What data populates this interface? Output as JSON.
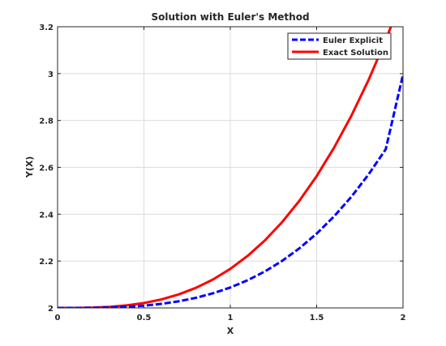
{
  "chart_data": {
    "type": "line",
    "title": "Solution with Euler's Method",
    "xlabel": "X",
    "ylabel": "Y(X)",
    "xlim": [
      0,
      2
    ],
    "ylim": [
      2,
      3.2
    ],
    "xticks": [
      0,
      0.5,
      1,
      1.5,
      2
    ],
    "xtick_labels": [
      "0",
      "0.5",
      "1",
      "1.5",
      "2"
    ],
    "yticks": [
      2,
      2.2,
      2.4,
      2.6,
      2.8,
      3,
      3.2
    ],
    "ytick_labels": [
      "2",
      "2.2",
      "2.4",
      "2.6",
      "2.8",
      "3",
      "3.2"
    ],
    "grid": true,
    "legend_position": "top-right",
    "series": [
      {
        "name": "Euler Explicit",
        "color": "#0000ff",
        "style": "dashed",
        "x": [
          0,
          0.1,
          0.2,
          0.3,
          0.4,
          0.5,
          0.6,
          0.7,
          0.8,
          0.9,
          1.0,
          1.1,
          1.2,
          1.3,
          1.4,
          1.5,
          1.6,
          1.7,
          1.8,
          1.9,
          2.0
        ],
        "y": [
          2.0,
          2.0,
          2.0004,
          2.0018,
          2.0046,
          2.0096,
          2.0172,
          2.0281,
          2.0429,
          2.0623,
          2.0871,
          2.1179,
          2.1555,
          2.2007,
          2.2543,
          2.3171,
          2.3899,
          2.4736,
          2.5691,
          2.6773,
          2.996
        ]
      },
      {
        "name": "Exact Solution",
        "color": "#ff0000",
        "style": "solid",
        "x": [
          0,
          0.1,
          0.2,
          0.3,
          0.4,
          0.5,
          0.6,
          0.7,
          0.8,
          0.9,
          1.0,
          1.1,
          1.2,
          1.3,
          1.4,
          1.5,
          1.6,
          1.7,
          1.8,
          1.9,
          2.0
        ],
        "y": [
          2.0,
          2.0001,
          2.0013,
          2.0045,
          2.0107,
          2.0208,
          2.036,
          2.0572,
          2.0853,
          2.1215,
          2.1667,
          2.2218,
          2.288,
          2.3662,
          2.4573,
          2.5625,
          2.6827,
          2.8188,
          2.972,
          3.1432,
          3.3333
        ]
      }
    ]
  }
}
